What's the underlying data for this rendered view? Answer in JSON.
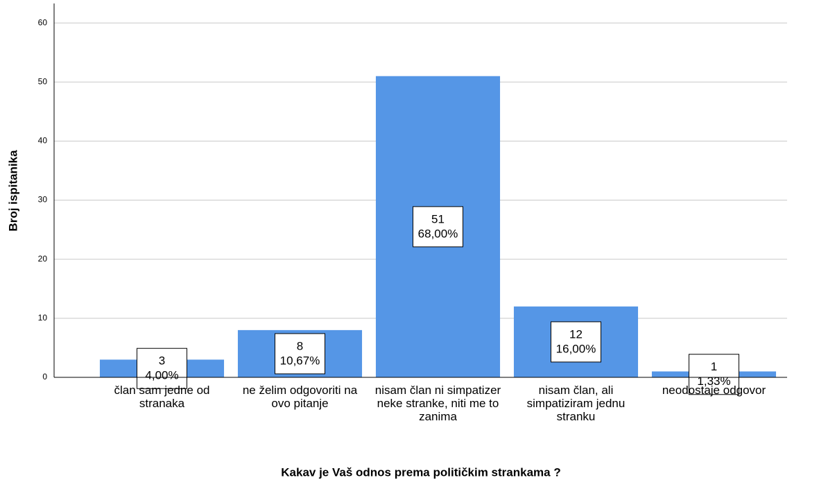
{
  "chart_data": {
    "type": "bar",
    "x_label": "Kakav je Vaš odnos prema političkim strankama ?",
    "y_label": "Broj ispitanika",
    "categories": [
      "član sam jedne od stranaka",
      "ne želim odgovoriti na ovo pitanje",
      "nisam član ni simpatizer neke stranke, niti me to zanima",
      "nisam član, ali simpatiziram jednu stranku",
      "neodostaje odgovor"
    ],
    "values": [
      3,
      8,
      51,
      12,
      1
    ],
    "percents": [
      4.0,
      10.67,
      68.0,
      16.0,
      1.33
    ],
    "percent_labels": [
      "4,00%",
      "10,67%",
      "68,00%",
      "16,00%",
      "1,33%"
    ],
    "color": "#5596e6",
    "ylim": [
      0,
      63.3
    ],
    "yticks": [
      0,
      10,
      20,
      30,
      40,
      50,
      60
    ],
    "grid": true
  }
}
